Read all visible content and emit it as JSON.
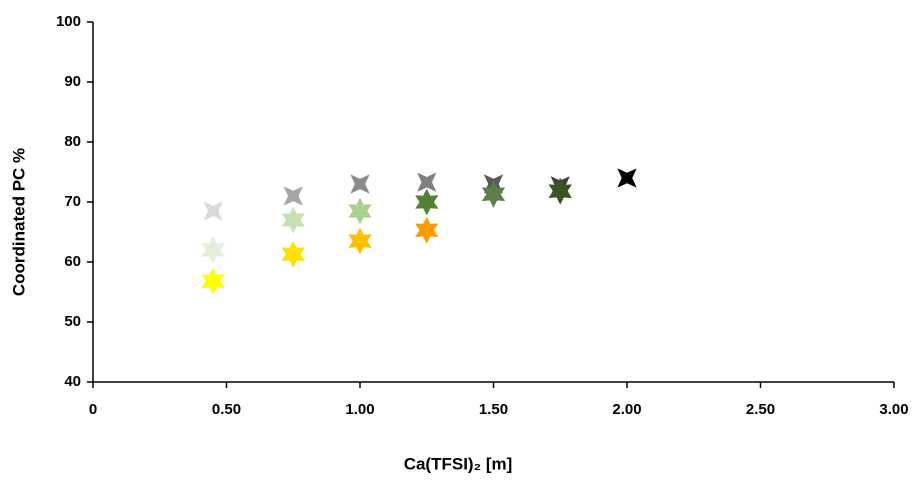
{
  "chart_data": {
    "type": "scatter",
    "xlabel": "Ca(TFSI)₂ [m]",
    "ylabel": "Coordinated PC %",
    "xlim": [
      0,
      3
    ],
    "xticks": [
      0,
      {
        "value": 0.5,
        "label": "0.50"
      },
      {
        "value": 1,
        "label": "1.00"
      },
      {
        "value": 1.5,
        "label": "1.50"
      },
      {
        "value": 2,
        "label": "2.00"
      },
      {
        "value": 2.5,
        "label": "2.50"
      },
      {
        "value": 3,
        "label": "3.00"
      }
    ],
    "ylim": [
      40,
      100
    ],
    "yticks": [
      40,
      50,
      60,
      70,
      80,
      90,
      100
    ],
    "grid": false,
    "series": [
      {
        "marker": "star4",
        "x": [
          0.45,
          0.75,
          1.0,
          1.25,
          1.5,
          1.75,
          2.0
        ],
        "values": [
          68.5,
          71,
          73,
          73.3,
          73,
          72.7,
          74
        ],
        "colors": [
          "#d9d9d9",
          "#a6a6a6",
          "#8c8c8c",
          "#7f7f7f",
          "#595959",
          "#404040",
          "#000000"
        ]
      },
      {
        "marker": "star6",
        "x": [
          0.45,
          0.75,
          1.0,
          1.25,
          1.5,
          1.75
        ],
        "values": [
          62,
          67,
          68.5,
          70,
          71.3,
          71.8
        ],
        "colors": [
          "#e2efda",
          "#c6e0b4",
          "#a9d18e",
          "#548235",
          "#5b7f4a",
          "#375623"
        ]
      },
      {
        "marker": "star6",
        "x": [
          0.45,
          0.75,
          1.0,
          1.25
        ],
        "values": [
          56.8,
          61.3,
          63.5,
          65.3
        ],
        "colors": [
          "#ffff00",
          "#ffe000",
          "#ffc000",
          "#ff9900"
        ]
      }
    ]
  }
}
